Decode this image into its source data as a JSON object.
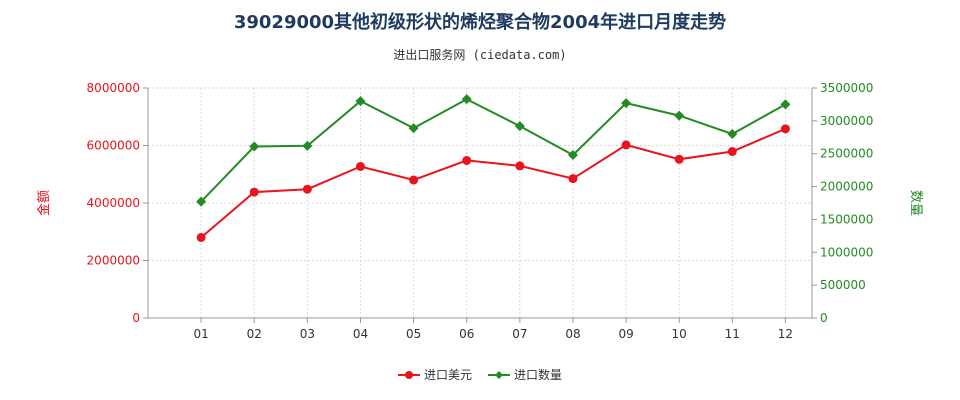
{
  "chart_data": {
    "type": "line",
    "title": "39029000其他初级形状的烯烃聚合物2004年进口月度走势",
    "subtitle": "进出口服务网 (ciedata.com)",
    "categories": [
      "01",
      "02",
      "03",
      "04",
      "05",
      "06",
      "07",
      "08",
      "09",
      "10",
      "11",
      "12"
    ],
    "y_left": {
      "label": "金额",
      "ylim": [
        0,
        8000000
      ],
      "ticks": [
        "0",
        "2000000",
        "4000000",
        "6000000",
        "8000000"
      ],
      "color": "#e8141e"
    },
    "y_right": {
      "label": "数量",
      "ylim": [
        0,
        3500000
      ],
      "ticks": [
        "0",
        "500000",
        "1000000",
        "1500000",
        "2000000",
        "2500000",
        "3000000",
        "3500000"
      ],
      "color": "#238b23"
    },
    "series": [
      {
        "name": "进口美元",
        "axis": "left",
        "color": "#e8141e",
        "values": [
          2800000,
          4380000,
          4480000,
          5270000,
          4800000,
          5480000,
          5290000,
          4850000,
          6020000,
          5520000,
          5790000,
          6580000
        ]
      },
      {
        "name": "进口数量",
        "axis": "right",
        "color": "#238b23",
        "values": [
          1770000,
          2610000,
          2620000,
          3300000,
          2890000,
          3330000,
          2920000,
          2480000,
          3270000,
          3080000,
          2800000,
          3250000
        ]
      }
    ],
    "grid": true,
    "legend_position": "bottom"
  }
}
